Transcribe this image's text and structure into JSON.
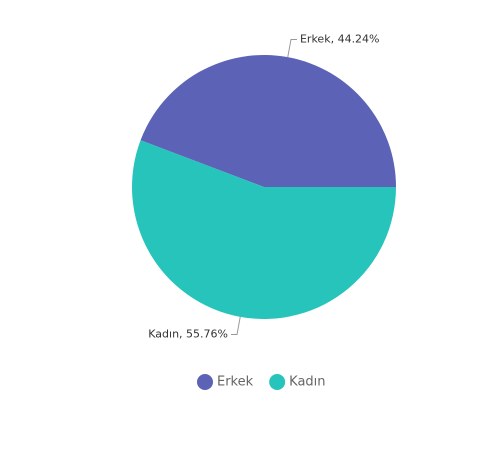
{
  "chart_data": {
    "type": "pie",
    "categories": [
      "Erkek",
      "Kadın"
    ],
    "values": [
      44.24,
      55.76
    ],
    "value_labels": [
      "Erkek, 44.24%",
      "Kadın, 55.76%"
    ],
    "colors": [
      "#5c62b5",
      "#27c4bc"
    ],
    "legend": "bottom"
  }
}
